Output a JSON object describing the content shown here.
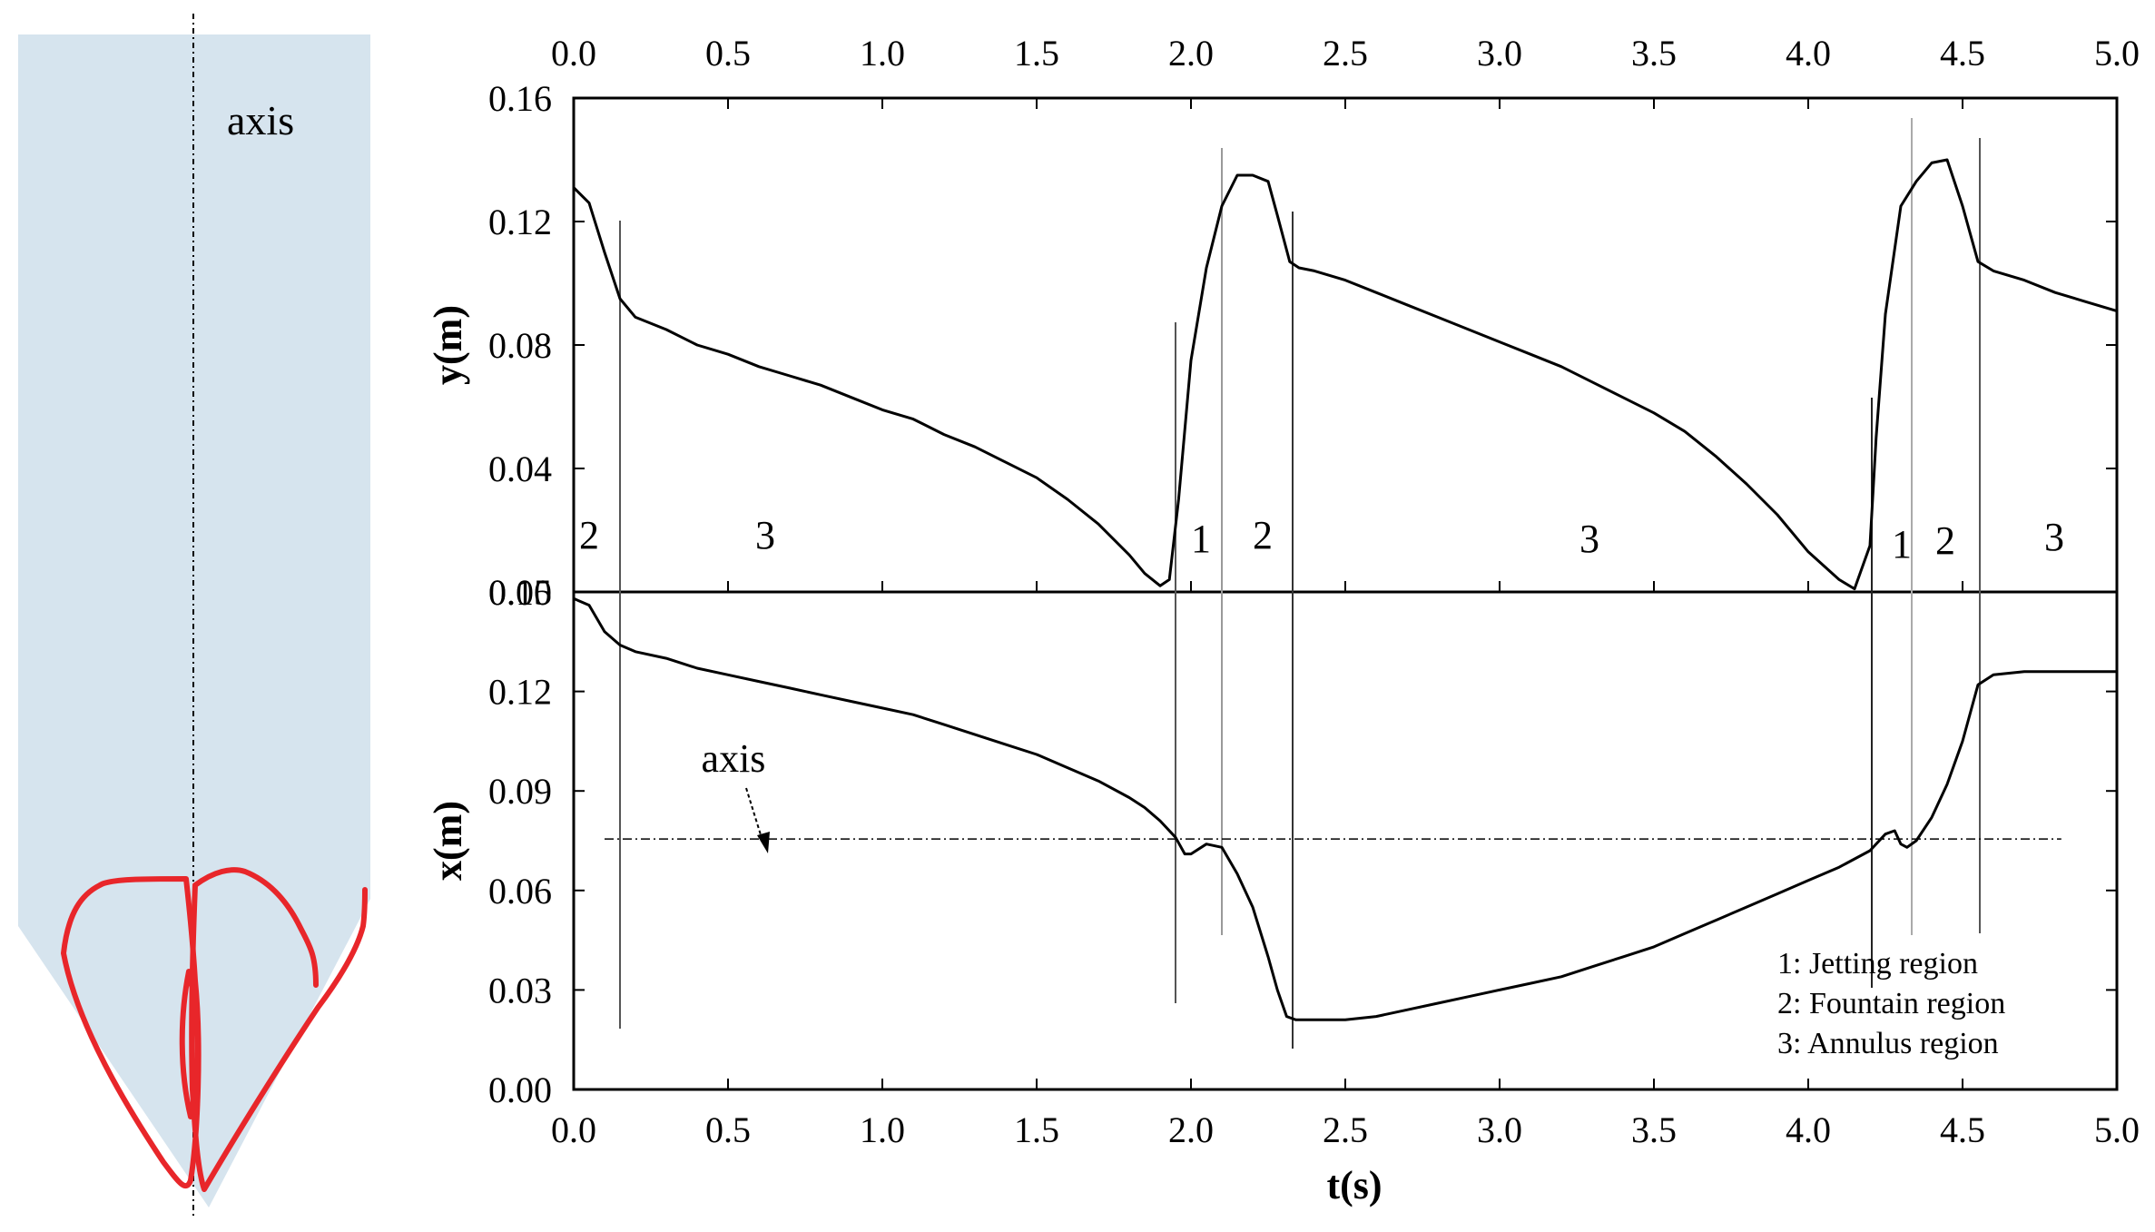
{
  "colors": {
    "schematic_fill": "#d6e4ee",
    "trajectory": "#e8262a",
    "line": "#000000"
  },
  "schematic": {
    "axis_label": "axis"
  },
  "chart_data": [
    {
      "type": "line",
      "ylabel": "y(m)",
      "xlim": [
        0,
        5
      ],
      "ylim": [
        0,
        0.16
      ],
      "x_ticks": [
        "0.0",
        "0.5",
        "1.0",
        "1.5",
        "2.0",
        "2.5",
        "3.0",
        "3.5",
        "4.0",
        "4.5",
        "5.0"
      ],
      "y_ticks": [
        "0.00",
        "0.04",
        "0.08",
        "0.12",
        "0.16"
      ],
      "series": [
        {
          "x": [
            0.0,
            0.05,
            0.1,
            0.15,
            0.2,
            0.3,
            0.4,
            0.5,
            0.6,
            0.7,
            0.8,
            0.9,
            1.0,
            1.1,
            1.2,
            1.3,
            1.4,
            1.5,
            1.6,
            1.7,
            1.8,
            1.85,
            1.9,
            1.93,
            1.96,
            2.0,
            2.05,
            2.1,
            2.15,
            2.2,
            2.25,
            2.28,
            2.32,
            2.35,
            2.4,
            2.5,
            2.6,
            2.7,
            2.8,
            2.9,
            3.0,
            3.1,
            3.2,
            3.3,
            3.4,
            3.5,
            3.6,
            3.7,
            3.8,
            3.9,
            4.0,
            4.1,
            4.15,
            4.2,
            4.22,
            4.25,
            4.3,
            4.35,
            4.4,
            4.45,
            4.5,
            4.55,
            4.6,
            4.7,
            4.8,
            4.9,
            5.0
          ],
          "values": [
            0.131,
            0.126,
            0.11,
            0.095,
            0.089,
            0.085,
            0.08,
            0.077,
            0.073,
            0.07,
            0.067,
            0.063,
            0.059,
            0.056,
            0.051,
            0.047,
            0.042,
            0.037,
            0.03,
            0.022,
            0.012,
            0.006,
            0.002,
            0.004,
            0.03,
            0.075,
            0.105,
            0.125,
            0.135,
            0.135,
            0.133,
            0.122,
            0.107,
            0.105,
            0.104,
            0.101,
            0.097,
            0.093,
            0.089,
            0.085,
            0.081,
            0.077,
            0.073,
            0.068,
            0.063,
            0.058,
            0.052,
            0.044,
            0.035,
            0.025,
            0.013,
            0.004,
            0.001,
            0.015,
            0.05,
            0.09,
            0.125,
            0.133,
            0.139,
            0.14,
            0.125,
            0.107,
            0.104,
            0.101,
            0.097,
            0.094,
            0.091
          ]
        }
      ],
      "annotations": [
        "2",
        "3",
        "1",
        "2",
        "3",
        "1",
        "2",
        "3"
      ]
    },
    {
      "type": "line",
      "xlabel": "t(s)",
      "ylabel": "x(m)",
      "xlim": [
        0,
        5
      ],
      "ylim": [
        0,
        0.15
      ],
      "x_ticks": [
        "0.0",
        "0.5",
        "1.0",
        "1.5",
        "2.0",
        "2.5",
        "3.0",
        "3.5",
        "4.0",
        "4.5",
        "5.0"
      ],
      "y_ticks": [
        "0.00",
        "0.03",
        "0.06",
        "0.09",
        "0.12",
        "0.15"
      ],
      "axis_line_y": 0.0755,
      "axis_label": "axis",
      "series": [
        {
          "x": [
            0.0,
            0.05,
            0.1,
            0.15,
            0.2,
            0.3,
            0.4,
            0.5,
            0.6,
            0.7,
            0.8,
            0.9,
            1.0,
            1.1,
            1.2,
            1.3,
            1.4,
            1.5,
            1.6,
            1.7,
            1.8,
            1.85,
            1.9,
            1.95,
            1.98,
            2.0,
            2.05,
            2.1,
            2.15,
            2.2,
            2.25,
            2.28,
            2.31,
            2.34,
            2.4,
            2.5,
            2.6,
            2.7,
            2.8,
            2.9,
            3.0,
            3.1,
            3.2,
            3.3,
            3.4,
            3.5,
            3.6,
            3.7,
            3.8,
            3.9,
            4.0,
            4.1,
            4.2,
            4.25,
            4.28,
            4.3,
            4.32,
            4.35,
            4.4,
            4.45,
            4.5,
            4.55,
            4.6,
            4.7,
            4.8,
            4.9,
            5.0
          ],
          "values": [
            0.148,
            0.146,
            0.138,
            0.134,
            0.132,
            0.13,
            0.127,
            0.125,
            0.123,
            0.121,
            0.119,
            0.117,
            0.115,
            0.113,
            0.11,
            0.107,
            0.104,
            0.101,
            0.097,
            0.093,
            0.088,
            0.085,
            0.081,
            0.076,
            0.071,
            0.071,
            0.074,
            0.073,
            0.065,
            0.055,
            0.04,
            0.03,
            0.022,
            0.021,
            0.021,
            0.021,
            0.022,
            0.024,
            0.026,
            0.028,
            0.03,
            0.032,
            0.034,
            0.037,
            0.04,
            0.043,
            0.047,
            0.051,
            0.055,
            0.059,
            0.063,
            0.067,
            0.072,
            0.077,
            0.078,
            0.074,
            0.073,
            0.075,
            0.082,
            0.092,
            0.105,
            0.122,
            0.125,
            0.126,
            0.126,
            0.126,
            0.126
          ]
        }
      ],
      "legend": [
        "1: Jetting region",
        "2: Fountain region",
        "3: Annulus region"
      ]
    }
  ]
}
